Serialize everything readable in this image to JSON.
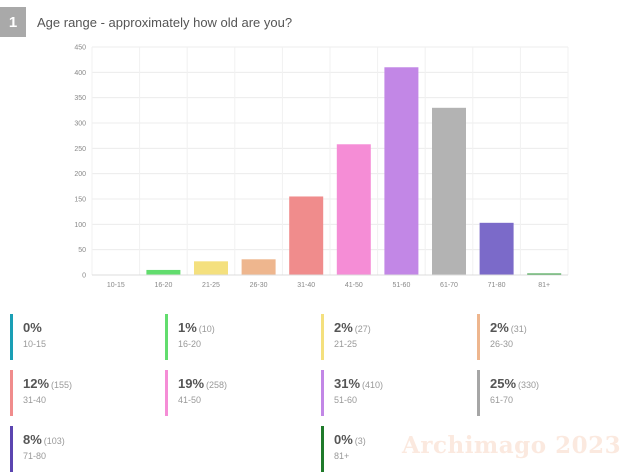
{
  "question": {
    "number": "1",
    "title": "Age range - approximately how old are you?"
  },
  "chart_data": {
    "type": "bar",
    "categories": [
      "10-15",
      "16-20",
      "21-25",
      "26-30",
      "31-40",
      "41-50",
      "51-60",
      "61-70",
      "71-80",
      "81+"
    ],
    "values": [
      0,
      10,
      27,
      31,
      155,
      258,
      410,
      330,
      103,
      3
    ],
    "colors": [
      "#1a9fb5",
      "#62dd6e",
      "#f4e07e",
      "#eeb68e",
      "#f08c8c",
      "#f58dd6",
      "#c287e6",
      "#b3b3b3",
      "#7b6ac9",
      "#2f9b3b"
    ],
    "ylim": [
      0,
      450
    ],
    "yticks": [
      0,
      50,
      100,
      150,
      200,
      250,
      300,
      350,
      400,
      450
    ],
    "grid": true,
    "title": "",
    "xlabel": "",
    "ylabel": ""
  },
  "stats": [
    {
      "pct": "0%",
      "count": "",
      "label": "10-15",
      "color": "#1a9fb5"
    },
    {
      "pct": "1%",
      "count": "(10)",
      "label": "16-20",
      "color": "#62dd6e"
    },
    {
      "pct": "2%",
      "count": "(27)",
      "label": "21-25",
      "color": "#f4e07e"
    },
    {
      "pct": "2%",
      "count": "(31)",
      "label": "26-30",
      "color": "#eeb68e"
    },
    {
      "pct": "12%",
      "count": "(155)",
      "label": "31-40",
      "color": "#f08c8c"
    },
    {
      "pct": "19%",
      "count": "(258)",
      "label": "41-50",
      "color": "#f58dd6"
    },
    {
      "pct": "31%",
      "count": "(410)",
      "label": "51-60",
      "color": "#c287e6"
    },
    {
      "pct": "25%",
      "count": "(330)",
      "label": "61-70",
      "color": "#a6a6a6"
    },
    {
      "pct": "8%",
      "count": "(103)",
      "label": "71-80",
      "color": "#5b45b0"
    },
    {
      "pct": "0%",
      "count": "(3)",
      "label": "81+",
      "color": "#1f7a2a"
    }
  ],
  "watermark": "Archimago 2023"
}
